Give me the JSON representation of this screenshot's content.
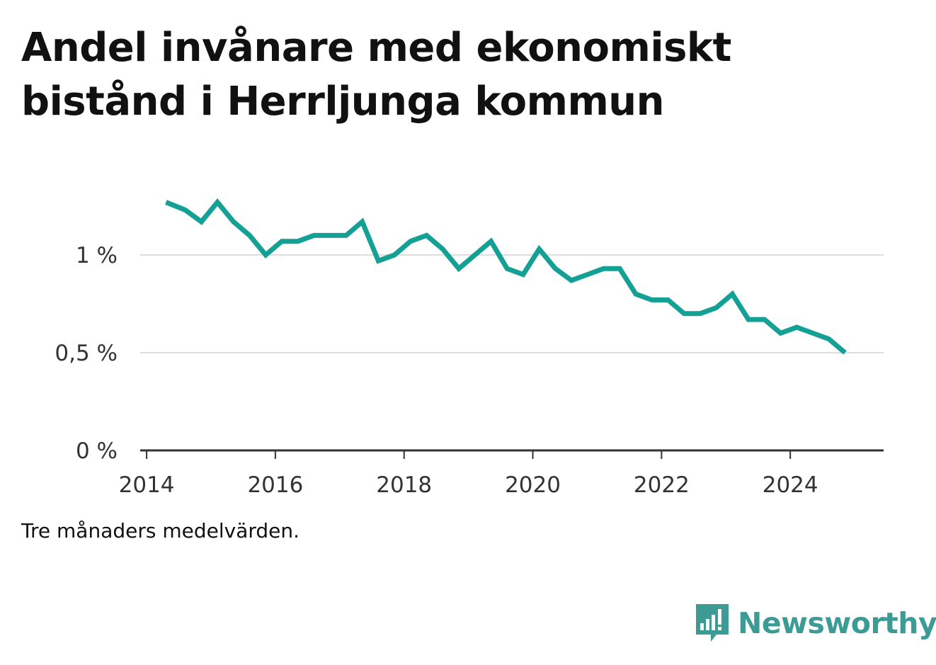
{
  "title": "Andel invånare med ekonomiskt bistånd i Herrljunga kommun",
  "footnote": "Tre månaders medelvärden.",
  "brand": {
    "name": "Newsworthy",
    "icon": "newsworthy-logo-icon",
    "color": "#3d9b95"
  },
  "colors": {
    "line": "#14a095",
    "grid": "#dddddd",
    "axis": "#333333"
  },
  "chart_data": {
    "type": "line",
    "title": "Andel invånare med ekonomiskt bistånd i Herrljunga kommun",
    "xlabel": "",
    "ylabel": "",
    "xlim": [
      2013.9,
      2025.45
    ],
    "ylim": [
      0,
      1.0
    ],
    "x_ticks": [
      2014,
      2016,
      2018,
      2020,
      2022,
      2024
    ],
    "x_tick_labels": [
      "2014",
      "2016",
      "2018",
      "2020",
      "2022",
      "2024"
    ],
    "y_ticks": [
      0,
      0.5,
      1
    ],
    "y_tick_labels": [
      "0 %",
      "0,5 %",
      "1 %"
    ],
    "grid": "horizontal",
    "x": [
      2014.3,
      2014.6,
      2014.85,
      2015.1,
      2015.35,
      2015.6,
      2015.85,
      2016.1,
      2016.35,
      2016.6,
      2016.85,
      2017.1,
      2017.35,
      2017.6,
      2017.85,
      2018.1,
      2018.35,
      2018.6,
      2018.85,
      2019.1,
      2019.35,
      2019.6,
      2019.85,
      2020.1,
      2020.35,
      2020.6,
      2020.85,
      2021.1,
      2021.35,
      2021.6,
      2021.85,
      2022.1,
      2022.35,
      2022.6,
      2022.85,
      2023.1,
      2023.35,
      2023.6,
      2023.85,
      2024.1,
      2024.35,
      2024.6,
      2024.85
    ],
    "series": [
      {
        "values": [
          1.27,
          1.23,
          1.17,
          1.27,
          1.17,
          1.1,
          1.0,
          1.07,
          1.07,
          1.1,
          1.1,
          1.1,
          1.17,
          0.97,
          1.0,
          1.07,
          1.1,
          1.03,
          0.93,
          1.0,
          1.07,
          0.93,
          0.9,
          1.03,
          0.93,
          0.87,
          0.9,
          0.93,
          0.93,
          0.8,
          0.77,
          0.77,
          0.7,
          0.7,
          0.73,
          0.8,
          0.67,
          0.67,
          0.6,
          0.63,
          0.6,
          0.57,
          0.5
        ]
      }
    ]
  }
}
